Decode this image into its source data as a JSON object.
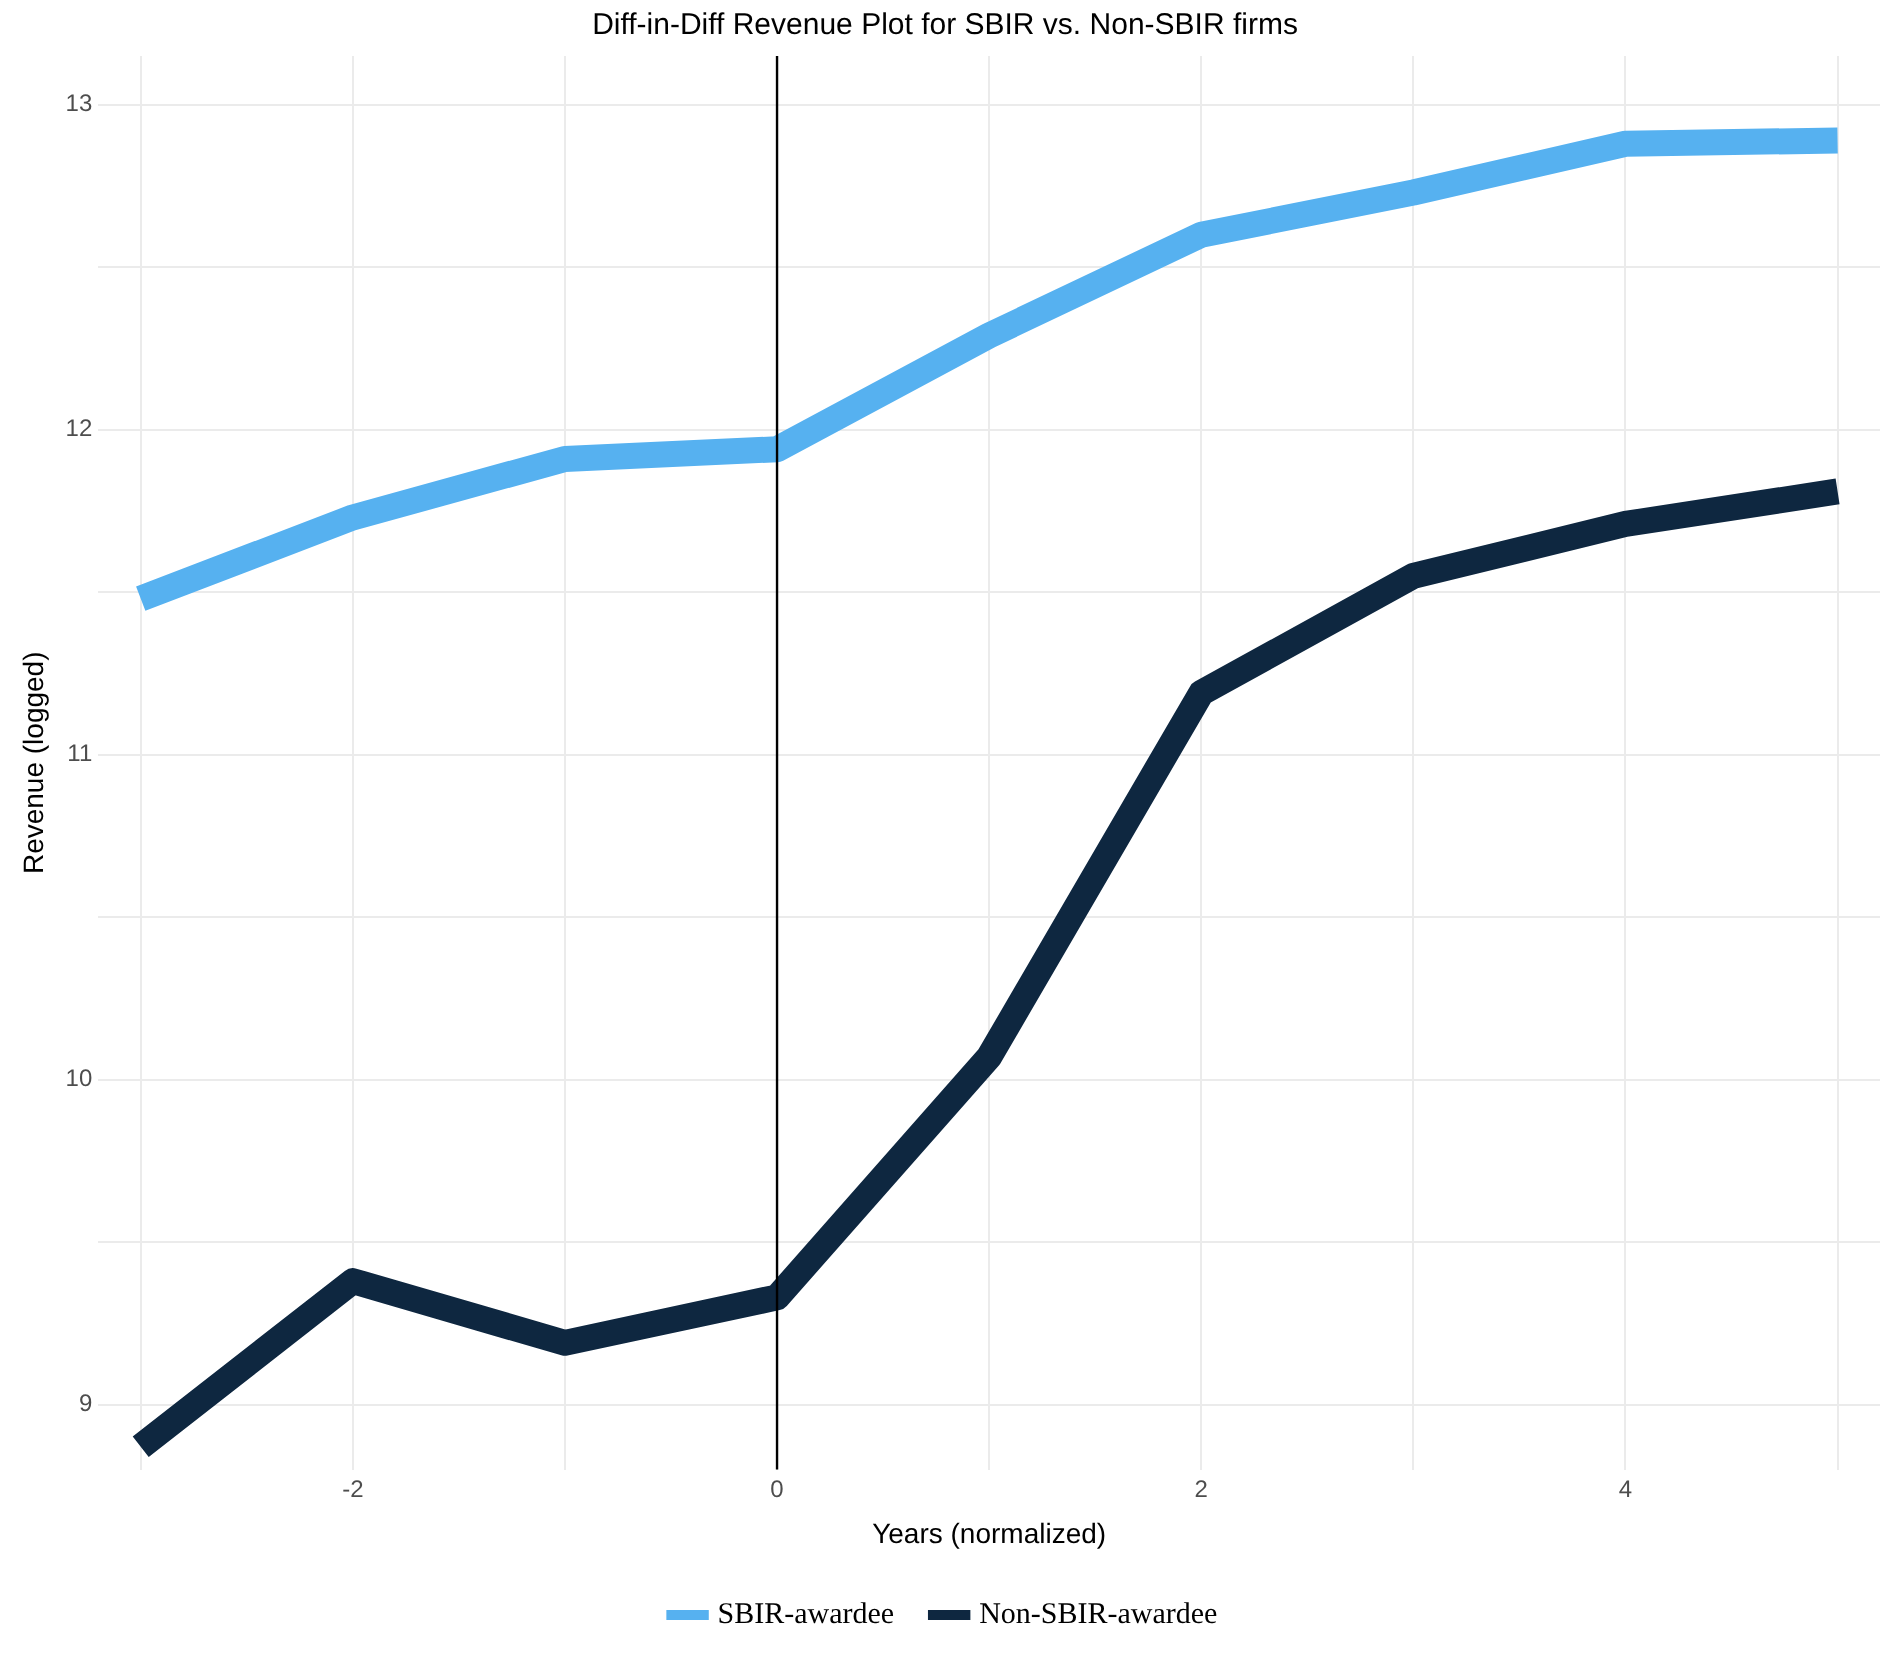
{
  "chart_data": {
    "type": "line",
    "title": "Diff-in-Diff Revenue Plot for SBIR vs. Non-SBIR firms",
    "xlabel": "Years (normalized)",
    "ylabel": "Revenue (logged)",
    "x": [
      -3,
      -2,
      -1,
      0,
      1,
      2,
      3,
      4,
      5
    ],
    "series": [
      {
        "name": "SBIR-awardee",
        "color": "#56b1f0",
        "values": [
          11.48,
          11.73,
          11.91,
          11.94,
          12.29,
          12.6,
          12.73,
          12.88,
          12.89
        ]
      },
      {
        "name": "Non-SBIR-awardee",
        "color": "#0e2740",
        "values": [
          8.87,
          9.38,
          9.19,
          9.33,
          10.07,
          11.19,
          11.55,
          11.71,
          11.81
        ]
      }
    ],
    "xlim": [
      -3.2,
      5.2
    ],
    "ylim": [
      8.8,
      13.15
    ],
    "xticks": [
      {
        "value": -3,
        "label": null
      },
      -2,
      {
        "value": -1,
        "label": null
      },
      0,
      {
        "value": 1,
        "label": null
      },
      2,
      {
        "value": 3,
        "label": null
      },
      4,
      {
        "value": 5,
        "label": null
      }
    ],
    "yticks": [
      9,
      {
        "value": 9.5,
        "label": null
      },
      10,
      {
        "value": 10.5,
        "label": null
      },
      11,
      {
        "value": 11.5,
        "label": null
      },
      12,
      {
        "value": 12.5,
        "label": null
      },
      13
    ],
    "ref_lines": [
      {
        "axis": "x",
        "value": 0,
        "color": "#000000"
      }
    ],
    "grid": true,
    "legend": "bottom",
    "marker": "none",
    "line_style": "solid"
  }
}
